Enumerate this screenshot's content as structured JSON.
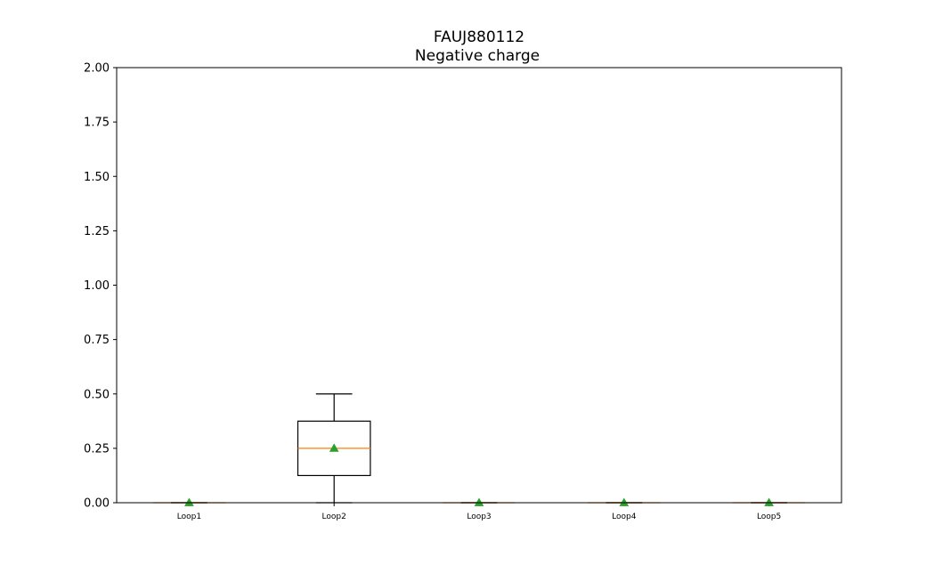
{
  "chart_data": {
    "type": "box",
    "title": "FAUJ880112",
    "subtitle": "Negative charge",
    "xlabel": "",
    "ylabel": "",
    "ylim": [
      0,
      2.0
    ],
    "yticks": [
      "0.00",
      "0.25",
      "0.50",
      "0.75",
      "1.00",
      "1.25",
      "1.50",
      "1.75",
      "2.00"
    ],
    "categories": [
      "Loop1",
      "Loop2",
      "Loop3",
      "Loop4",
      "Loop5"
    ],
    "boxes": [
      {
        "name": "Loop1",
        "whisker_low": 0,
        "q1": 0,
        "median": 0,
        "q3": 0,
        "whisker_high": 0,
        "mean": 0
      },
      {
        "name": "Loop2",
        "whisker_low": 0,
        "q1": 0.125,
        "median": 0.25,
        "q3": 0.375,
        "whisker_high": 0.5,
        "mean": 0.25
      },
      {
        "name": "Loop3",
        "whisker_low": 0,
        "q1": 0,
        "median": 0,
        "q3": 0,
        "whisker_high": 0,
        "mean": 0
      },
      {
        "name": "Loop4",
        "whisker_low": 0,
        "q1": 0,
        "median": 0,
        "q3": 0,
        "whisker_high": 0,
        "mean": 0
      },
      {
        "name": "Loop5",
        "whisker_low": 0,
        "q1": 0,
        "median": 0,
        "q3": 0,
        "whisker_high": 0,
        "mean": 0
      }
    ],
    "grid": false,
    "colors": {
      "median": "#ff7f0e",
      "mean": "#2ca02c",
      "box": "#000000"
    }
  }
}
